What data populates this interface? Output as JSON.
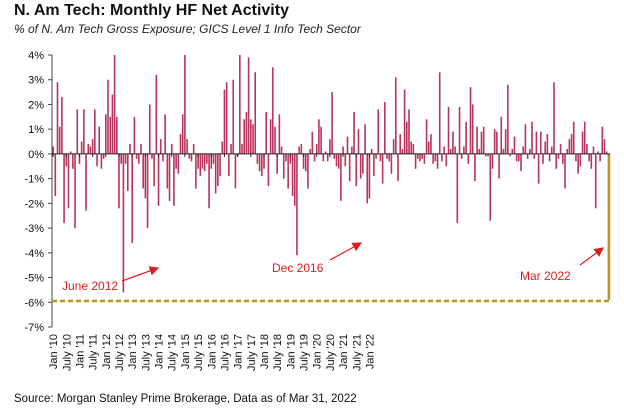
{
  "title": "N. Am Tech: Monthly HF Net Activity",
  "subtitle": "% of N. Am Tech Gross Exposure; GICS Level 1 Info Tech Sector",
  "source": "Source: Morgan Stanley Prime Brokerage, Data as of Mar 31, 2022",
  "colors": {
    "bar": "#b8345a",
    "last_bar": "#b8962e",
    "annotation": "#d92020"
  },
  "chart_data": {
    "type": "bar",
    "title": "N. Am Tech: Monthly HF Net Activity",
    "ylabel": "",
    "xlabel": "",
    "ylim": [
      -7,
      4
    ],
    "y_ticks": [
      "4%",
      "3%",
      "2%",
      "1%",
      "0%",
      "-1%",
      "-2%",
      "-3%",
      "-4%",
      "-5%",
      "-6%",
      "-7%"
    ],
    "x_tick_labels": [
      "Jan '10",
      "July '10",
      "Jan '11",
      "July '11",
      "Jan '12",
      "July '12",
      "Jan '13",
      "July '13",
      "Jan '14",
      "July '14",
      "Jan '15",
      "July '15",
      "Jan '16",
      "July '16",
      "Jan '17",
      "July '17",
      "Jan '18",
      "July '18",
      "Jan '19",
      "July '19",
      "Jan '20",
      "July '20",
      "Jan '21",
      "July '21",
      "Jan '22"
    ],
    "start": "Jan '10",
    "end": "Mar '22",
    "values": [
      0.3,
      -1.7,
      2.9,
      1.1,
      2.3,
      -2.8,
      -0.5,
      -2.2,
      0.1,
      -0.6,
      -3.0,
      1.8,
      -0.4,
      0.5,
      1.8,
      -2.3,
      0.4,
      0.3,
      0.6,
      1.8,
      -0.5,
      1.1,
      -0.6,
      -0.2,
      1.6,
      3.0,
      1.5,
      2.4,
      4.0,
      1.5,
      -2.2,
      -0.4,
      -5.6,
      -0.4,
      -1.5,
      0.4,
      -3.6,
      1.5,
      -0.2,
      -0.4,
      0.4,
      -1.4,
      -1.8,
      -3.0,
      2.0,
      -0.2,
      -1.3,
      3.2,
      -2.1,
      0.6,
      -0.3,
      1.6,
      -1.4,
      -1.9,
      0.4,
      -2.1,
      -0.6,
      -0.8,
      0.8,
      1.6,
      4.0,
      0.6,
      -0.2,
      -0.3,
      0.4,
      -1.4,
      -0.6,
      -0.9,
      -0.6,
      -0.7,
      -0.4,
      -2.2,
      -0.6,
      -0.4,
      -1.6,
      -1.3,
      -0.9,
      0.5,
      2.6,
      2.9,
      -0.9,
      0.4,
      3.0,
      -1.4,
      -0.1,
      4.0,
      0.4,
      1.4,
      1.7,
      3.9,
      1.4,
      1.2,
      3.3,
      -0.4,
      -0.7,
      -0.9,
      -0.6,
      1.7,
      -1.3,
      1.4,
      3.5,
      1.1,
      -0.8,
      1.6,
      0.3,
      -1.0,
      -0.3,
      -1.4,
      -0.4,
      -1.7,
      -2.1,
      -4.1,
      0.3,
      0.4,
      -0.6,
      -0.7,
      -1.4,
      0.2,
      0.9,
      -0.3,
      0.4,
      1.4,
      1.1,
      -0.3,
      0.1,
      -0.3,
      0.6,
      2.5,
      -0.2,
      -0.5,
      -0.6,
      -1.9,
      0.3,
      -0.5,
      0.7,
      -1.1,
      0.3,
      1.7,
      -1.3,
      1.0,
      -1.0,
      -0.8,
      1.2,
      -2.0,
      -1.8,
      0.2,
      -0.9,
      -0.2,
      1.8,
      -0.3,
      -1.2,
      2.1,
      -0.2,
      -0.3,
      -0.8,
      0.6,
      3.1,
      -1.1,
      0.8,
      0.2,
      2.6,
      1.3,
      1.8,
      0.5,
      0.4,
      -0.6,
      -0.2,
      -0.3,
      -0.2,
      -0.4,
      1.4,
      0.5,
      0.8,
      -0.4,
      -0.3,
      -0.6,
      3.3,
      -0.3,
      0.3,
      -0.5,
      1.9,
      0.2,
      0.9,
      0.3,
      -2.8,
      1.9,
      -0.2,
      0.3,
      1.3,
      -0.4,
      2.7,
      2.0,
      -1.1,
      1.1,
      0.2,
      0.9,
      1.1,
      -0.1,
      -0.1,
      -2.7,
      -0.6,
      1.0,
      0.9,
      -1.0,
      1.5,
      0.2,
      1.0,
      2.8,
      -0.1,
      0.2,
      0.7,
      -0.3,
      -0.3,
      -0.7,
      0.3,
      1.2,
      -0.2,
      0.2,
      1.3,
      -0.2,
      0.9,
      -1.2,
      0.9,
      -0.4,
      0.5,
      0.8,
      -0.3,
      0.3,
      2.9,
      -0.6,
      -0.2,
      0.4,
      -0.4,
      -1.4,
      0.2,
      0.6,
      0.8,
      1.3,
      -0.3,
      -0.8,
      -0.5,
      0.9,
      1.3,
      0.4,
      -0.3,
      -0.6,
      0.3,
      -2.2,
      0.1,
      -0.3,
      1.1,
      0.6,
      0.1,
      -5.9
    ],
    "reference_level": -5.95,
    "annotations": [
      {
        "text": "June 2012",
        "x": "June 2012"
      },
      {
        "text": "Dec 2016",
        "x": "Dec 2016"
      },
      {
        "text": "Mar 2022",
        "x": "Mar 2022"
      }
    ],
    "grid": false,
    "legend": "none"
  }
}
